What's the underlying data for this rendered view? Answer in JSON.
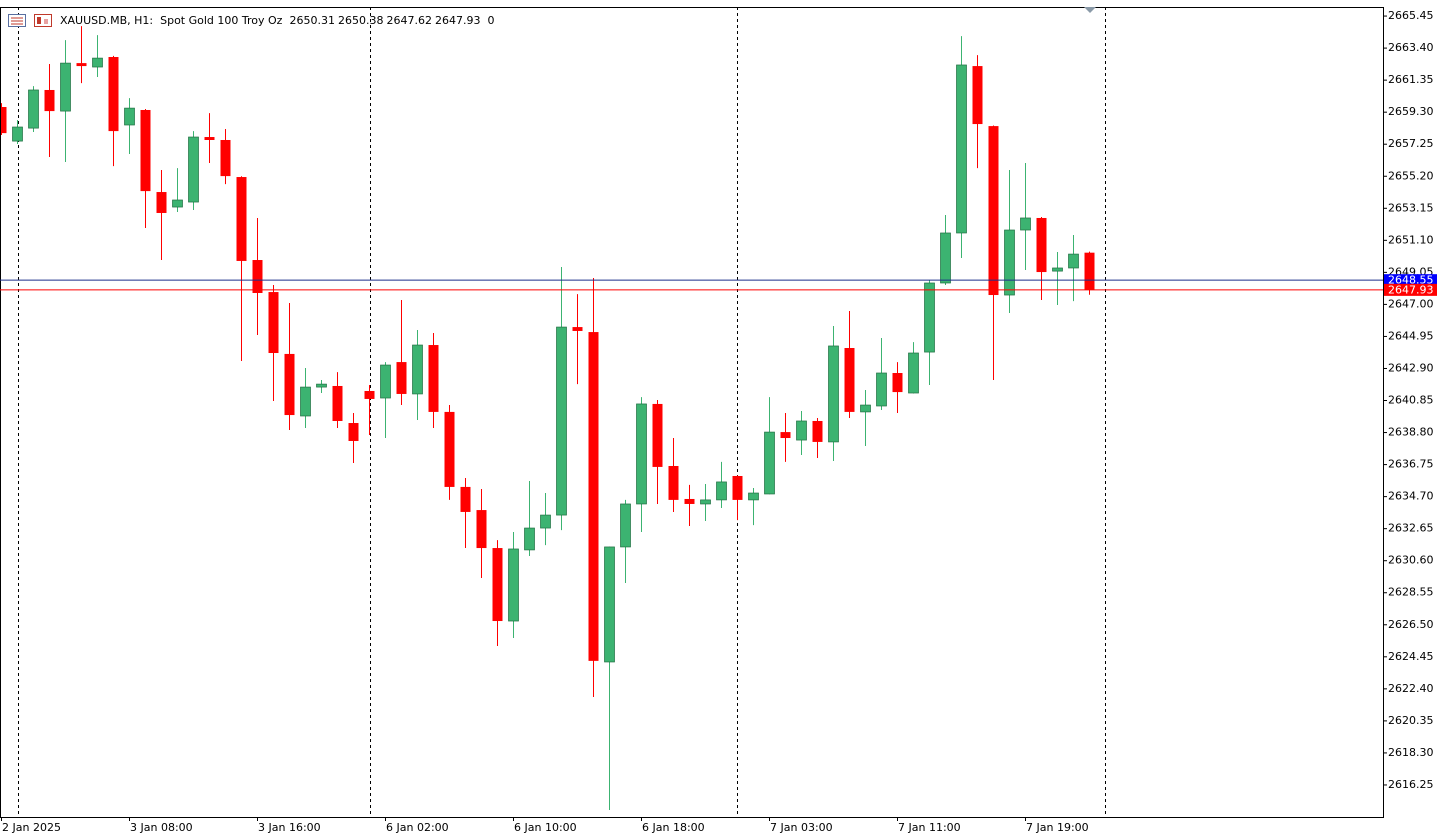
{
  "chart_data": {
    "type": "candlestick",
    "title": "XAUUSD.MB, H1:  Spot Gold 100 Troy Oz",
    "volume": 0,
    "categories": [
      "2 Jan 2025",
      null,
      null,
      null,
      null,
      null,
      null,
      null,
      "3 Jan 08:00",
      null,
      null,
      null,
      null,
      null,
      null,
      null,
      "3 Jan 16:00",
      null,
      null,
      null,
      null,
      null,
      null,
      null,
      "6 Jan 02:00",
      null,
      null,
      null,
      null,
      null,
      null,
      null,
      "6 Jan 10:00",
      null,
      null,
      null,
      null,
      null,
      null,
      null,
      "6 Jan 18:00",
      null,
      null,
      null,
      null,
      null,
      null,
      null,
      "7 Jan 03:00",
      null,
      null,
      null,
      null,
      null,
      null,
      null,
      "7 Jan 11:00",
      null,
      null,
      null,
      null,
      null,
      null,
      null,
      "7 Jan 19:00",
      null,
      null,
      null,
      null
    ],
    "open": [
      2659.63,
      2657.45,
      2658.28,
      2660.72,
      2659.37,
      2662.44,
      2662.19,
      2662.83,
      2658.48,
      2659.44,
      2654.19,
      2653.23,
      2653.55,
      2657.71,
      2657.52,
      2655.15,
      2649.84,
      2647.79,
      2643.83,
      2639.86,
      2641.71,
      2641.78,
      2639.41,
      2641.46,
      2641.01,
      2643.31,
      2641.27,
      2644.4,
      2640.12,
      2635.32,
      2633.84,
      2631.41,
      2626.74,
      2631.29,
      2632.69,
      2633.52,
      2645.55,
      2645.23,
      2624.12,
      2631.48,
      2634.23,
      2640.63,
      2636.66,
      2634.55,
      2634.23,
      2634.49,
      2636.02,
      2634.49,
      2634.87,
      2638.83,
      2638.32,
      2639.54,
      2638.2,
      2644.21,
      2640.12,
      2640.5,
      2642.61,
      2641.33,
      2643.95,
      2648.37,
      2651.57,
      2662.25,
      2658.41,
      2647.6,
      2651.76,
      2652.53,
      2649.13,
      2649.33,
      2650.31
    ],
    "high": [
      2659.88,
      2658.8,
      2660.97,
      2662.38,
      2663.91,
      2664.81,
      2664.23,
      2662.9,
      2660.2,
      2659.5,
      2655.6,
      2655.72,
      2658.09,
      2659.24,
      2658.22,
      2655.2,
      2652.53,
      2648.24,
      2647.09,
      2642.93,
      2642.16,
      2642.67,
      2640.05,
      2641.84,
      2643.31,
      2647.28,
      2645.36,
      2645.17,
      2640.56,
      2635.89,
      2635.19,
      2631.92,
      2632.44,
      2635.7,
      2634.93,
      2649.39,
      2647.66,
      2648.69,
      2631.5,
      2634.49,
      2641.07,
      2640.88,
      2638.45,
      2635.45,
      2635.51,
      2636.92,
      2636.05,
      2635.25,
      2641.07,
      2640.05,
      2640.18,
      2639.73,
      2645.62,
      2646.58,
      2641.52,
      2644.85,
      2643.31,
      2644.59,
      2648.56,
      2652.72,
      2664.17,
      2662.95,
      2658.45,
      2655.6,
      2656.05,
      2652.59,
      2650.35,
      2651.44,
      2650.38
    ],
    "low": [
      2657.84,
      2657.26,
      2658.03,
      2656.43,
      2656.11,
      2661.16,
      2661.55,
      2655.85,
      2656.62,
      2651.89,
      2649.84,
      2652.91,
      2653.04,
      2656.05,
      2654.7,
      2643.38,
      2645.04,
      2640.82,
      2638.96,
      2639.09,
      2641.33,
      2639.09,
      2636.85,
      2638.64,
      2638.45,
      2640.56,
      2639.6,
      2639.09,
      2634.49,
      2631.41,
      2629.49,
      2625.14,
      2625.65,
      2630.9,
      2631.6,
      2632.56,
      2641.9,
      2621.88,
      2614.65,
      2629.17,
      2632.44,
      2634.23,
      2633.72,
      2632.82,
      2633.14,
      2633.97,
      2633.2,
      2632.88,
      2634.85,
      2636.92,
      2637.36,
      2637.17,
      2636.98,
      2639.73,
      2637.94,
      2640.24,
      2640.05,
      2641.3,
      2641.84,
      2648.24,
      2649.97,
      2655.72,
      2642.16,
      2646.45,
      2649.2,
      2647.28,
      2646.96,
      2647.21,
      2647.62
    ],
    "close": [
      2657.96,
      2658.35,
      2660.72,
      2659.37,
      2662.44,
      2662.25,
      2662.76,
      2658.09,
      2659.56,
      2654.25,
      2652.85,
      2653.68,
      2657.71,
      2657.52,
      2655.21,
      2649.78,
      2647.73,
      2643.89,
      2639.92,
      2641.71,
      2641.9,
      2639.54,
      2638.26,
      2640.95,
      2643.12,
      2641.27,
      2644.4,
      2640.12,
      2635.32,
      2633.72,
      2631.41,
      2626.74,
      2631.35,
      2632.69,
      2633.52,
      2645.55,
      2645.3,
      2624.19,
      2631.48,
      2634.23,
      2640.63,
      2636.6,
      2634.49,
      2634.23,
      2634.49,
      2635.64,
      2634.49,
      2634.93,
      2638.83,
      2638.45,
      2639.54,
      2638.2,
      2644.34,
      2640.12,
      2640.56,
      2642.61,
      2641.39,
      2643.89,
      2648.37,
      2651.57,
      2662.32,
      2658.54,
      2647.6,
      2651.76,
      2652.53,
      2649.07,
      2649.33,
      2650.22,
      2647.93
    ],
    "up_color": "#3cb371",
    "down_color": "#ff0000",
    "bid": 2647.93,
    "bid_color": "#ff0000",
    "ask": 2648.55,
    "ask_color": "#0000ff",
    "ylim": [
      2614.2,
      2666.03
    ],
    "yticks": [
      2665.45,
      {
        "value": 2663.4,
        "label": "2663.40"
      },
      2661.35,
      {
        "value": 2659.3,
        "label": "2659.30"
      },
      2657.25,
      {
        "value": 2655.2,
        "label": "2655.20"
      },
      2653.15,
      {
        "value": 2651.1,
        "label": "2651.10"
      },
      2649.05,
      {
        "value": 2647,
        "label": "2647.00"
      },
      2644.95,
      {
        "value": 2642.9,
        "label": "2642.90"
      },
      2640.85,
      {
        "value": 2638.8,
        "label": "2638.80"
      },
      2636.75,
      {
        "value": 2634.7,
        "label": "2634.70"
      },
      2632.65,
      {
        "value": 2630.6,
        "label": "2630.60"
      },
      2628.55,
      {
        "value": 2626.5,
        "label": "2626.50"
      },
      2624.45,
      {
        "value": 2622.4,
        "label": "2622.40"
      },
      2620.35,
      {
        "value": 2618.3,
        "label": "2618.30"
      },
      2616.25
    ]
  }
}
